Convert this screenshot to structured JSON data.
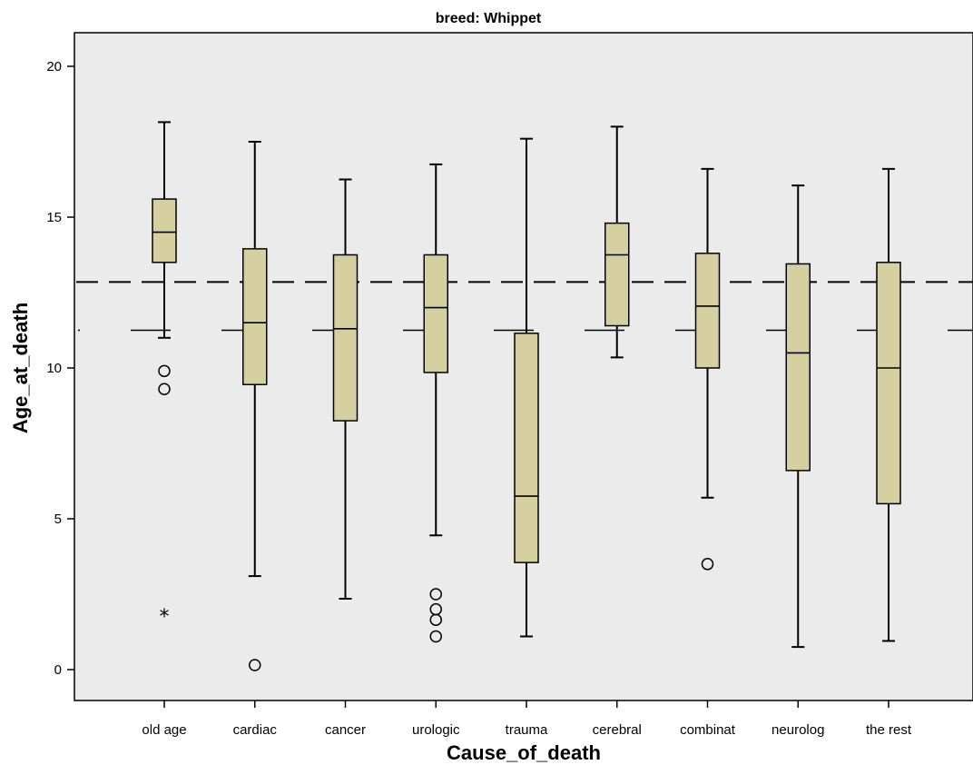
{
  "chart_data": {
    "type": "box",
    "title": "breed: Whippet",
    "xlabel": "Cause_of_death",
    "ylabel": "Age_at_death",
    "ylim": [
      -1,
      21
    ],
    "yticks": [
      0,
      5,
      10,
      15,
      20
    ],
    "grid": false,
    "colors": {
      "plot_background": "#ebebeb",
      "box_fill": "#d6d0a0",
      "stroke": "#000000"
    },
    "reference_lines": [
      {
        "style": "dashed-long",
        "y": 12.85
      },
      {
        "style": "dashed-segments",
        "y": 11.25
      }
    ],
    "categories": [
      "old age",
      "cardiac",
      "cancer",
      "urologic",
      "trauma",
      "cerebral",
      "combinat",
      "neurolog",
      "the rest"
    ],
    "boxes": [
      {
        "category": "old age",
        "whisker_low": 11.0,
        "q1": 13.5,
        "median": 14.5,
        "q3": 15.6,
        "whisker_high": 18.15,
        "outliers": [
          9.9,
          9.3
        ],
        "extremes": [
          1.9
        ]
      },
      {
        "category": "cardiac",
        "whisker_low": 3.1,
        "q1": 9.45,
        "median": 11.5,
        "q3": 13.95,
        "whisker_high": 17.5,
        "outliers": [
          0.15
        ],
        "extremes": []
      },
      {
        "category": "cancer",
        "whisker_low": 2.35,
        "q1": 8.25,
        "median": 11.3,
        "q3": 13.75,
        "whisker_high": 16.25,
        "outliers": [],
        "extremes": []
      },
      {
        "category": "urologic",
        "whisker_low": 4.45,
        "q1": 9.85,
        "median": 12.0,
        "q3": 13.75,
        "whisker_high": 16.75,
        "outliers": [
          2.5,
          2.0,
          1.65,
          1.1
        ],
        "extremes": []
      },
      {
        "category": "trauma",
        "whisker_low": 1.1,
        "q1": 3.55,
        "median": 5.75,
        "q3": 11.15,
        "whisker_high": 17.6,
        "outliers": [],
        "extremes": []
      },
      {
        "category": "cerebral",
        "whisker_low": 10.35,
        "q1": 11.4,
        "median": 13.75,
        "q3": 14.8,
        "whisker_high": 18.0,
        "outliers": [],
        "extremes": []
      },
      {
        "category": "combinat",
        "whisker_low": 5.7,
        "q1": 10.0,
        "median": 12.05,
        "q3": 13.8,
        "whisker_high": 16.6,
        "outliers": [
          3.5
        ],
        "extremes": []
      },
      {
        "category": "neurolog",
        "whisker_low": 0.75,
        "q1": 6.6,
        "median": 10.5,
        "q3": 13.45,
        "whisker_high": 16.05,
        "outliers": [],
        "extremes": []
      },
      {
        "category": "the rest",
        "whisker_low": 0.95,
        "q1": 5.5,
        "median": 10.0,
        "q3": 13.5,
        "whisker_high": 16.6,
        "outliers": [],
        "extremes": []
      }
    ]
  }
}
